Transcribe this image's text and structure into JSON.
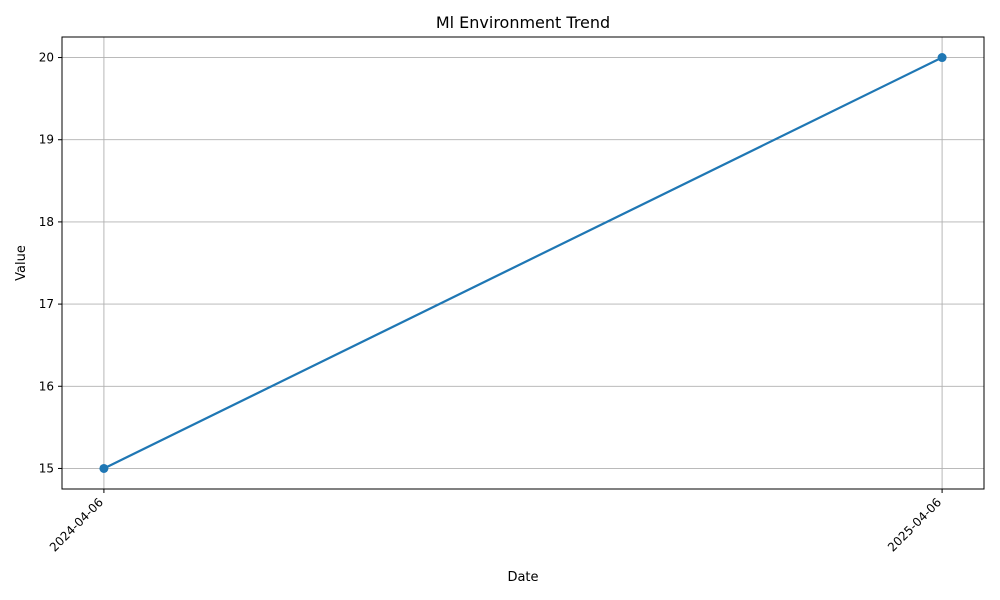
{
  "chart_data": {
    "type": "line",
    "title": "Ml Environment Trend",
    "xlabel": "Date",
    "ylabel": "Value",
    "x": [
      "2024-04-06",
      "2025-04-06"
    ],
    "series": [
      {
        "values": [
          15,
          20
        ],
        "color": "#1f77b4"
      }
    ],
    "x_ticks": [
      "2024-04-06",
      "2025-04-06"
    ],
    "y_ticks": [
      15,
      16,
      17,
      18,
      19,
      20
    ],
    "ylim": [
      14.75,
      20.25
    ],
    "grid": true,
    "legend": "none",
    "grid_color": "#b0b0b0"
  }
}
